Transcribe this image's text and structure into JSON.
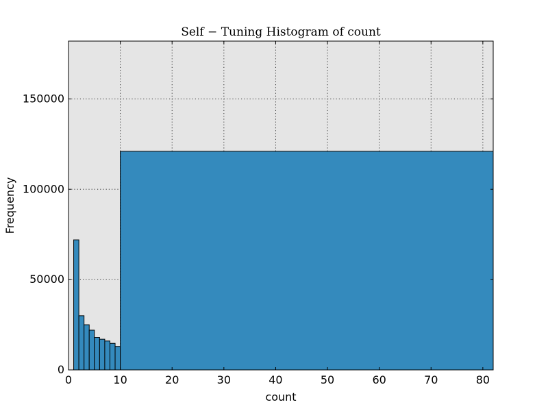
{
  "chart_data": {
    "type": "bar",
    "title": "Self − Tuning Histogram of count",
    "xlabel": "count",
    "ylabel": "Frequency",
    "xlim": [
      0,
      82
    ],
    "ylim": [
      0,
      182000
    ],
    "x_ticks": [
      0,
      10,
      20,
      30,
      40,
      50,
      60,
      70,
      80
    ],
    "y_ticks": [
      0,
      50000,
      100000,
      150000
    ],
    "x_tick_labels": [
      "0",
      "10",
      "20",
      "30",
      "40",
      "50",
      "60",
      "70",
      "80"
    ],
    "y_tick_labels": [
      "0",
      "50000",
      "100000",
      "150000"
    ],
    "grid": true,
    "bins": [
      {
        "x0": 1,
        "x1": 2,
        "value": 72000
      },
      {
        "x0": 2,
        "x1": 3,
        "value": 30000
      },
      {
        "x0": 3,
        "x1": 4,
        "value": 25000
      },
      {
        "x0": 4,
        "x1": 5,
        "value": 22000
      },
      {
        "x0": 5,
        "x1": 6,
        "value": 18000
      },
      {
        "x0": 6,
        "x1": 7,
        "value": 17000
      },
      {
        "x0": 7,
        "x1": 8,
        "value": 16000
      },
      {
        "x0": 8,
        "x1": 9,
        "value": 14700
      },
      {
        "x0": 9,
        "x1": 10,
        "value": 13000
      },
      {
        "x0": 10,
        "x1": 82,
        "value": 121000
      }
    ],
    "colors": {
      "bar_fill": "#348abd",
      "plot_background": "#e5e5e5",
      "axes_edge": "#000000",
      "bar_edge": "#000000"
    }
  }
}
